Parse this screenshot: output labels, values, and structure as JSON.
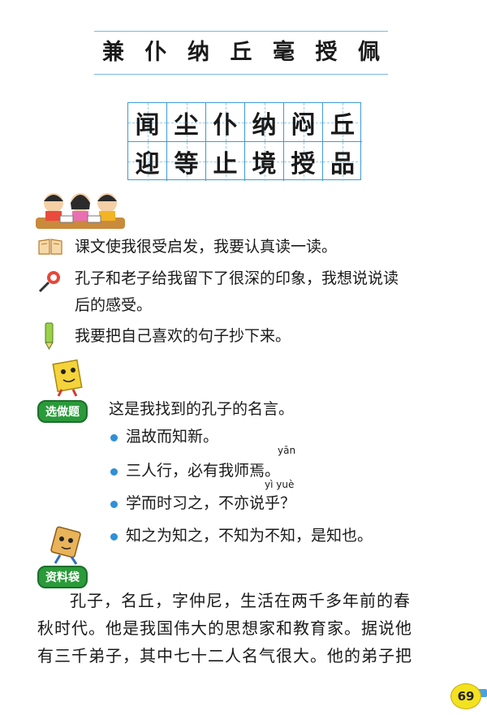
{
  "vocab_title_chars": [
    "兼",
    "仆",
    "纳",
    "丘",
    "毫",
    "授",
    "佩"
  ],
  "grid_chars": [
    "闻",
    "尘",
    "仆",
    "纳",
    "闷",
    "丘",
    "迎",
    "等",
    "止",
    "境",
    "授",
    "品"
  ],
  "prompts": [
    "课文使我很受启发，我要认真读一读。",
    "孔子和老子给我留下了很深的印象，我想说说读",
    "后的感受。",
    "我要把自己喜欢的句子抄下来。"
  ],
  "optional": {
    "badge": "选做题",
    "intro": "这是我找到的孔子的名言。",
    "quotes": [
      "温故而知新。",
      "三人行，必有我师焉。",
      "学而时习之，不亦说乎？",
      "知之为知之，不知为不知，是知也。"
    ],
    "pinyin_yan": "yān",
    "pinyin_yi_yue": "yì yuè"
  },
  "info": {
    "badge": "资料袋",
    "lines": [
      "孔子，名丘，字仲尼，生活在两千多年前的春",
      "秋时代。他是我国伟大的思想家和教育家。据说他",
      "有三千弟子，其中七十二人名气很大。他的弟子把"
    ]
  },
  "page_number": "69",
  "colors": {
    "grid_line": "#3d9bd6",
    "badge_green": "#2a9a3a",
    "bullet_blue": "#2f8fd8",
    "page_badge": "#f2e21f"
  }
}
